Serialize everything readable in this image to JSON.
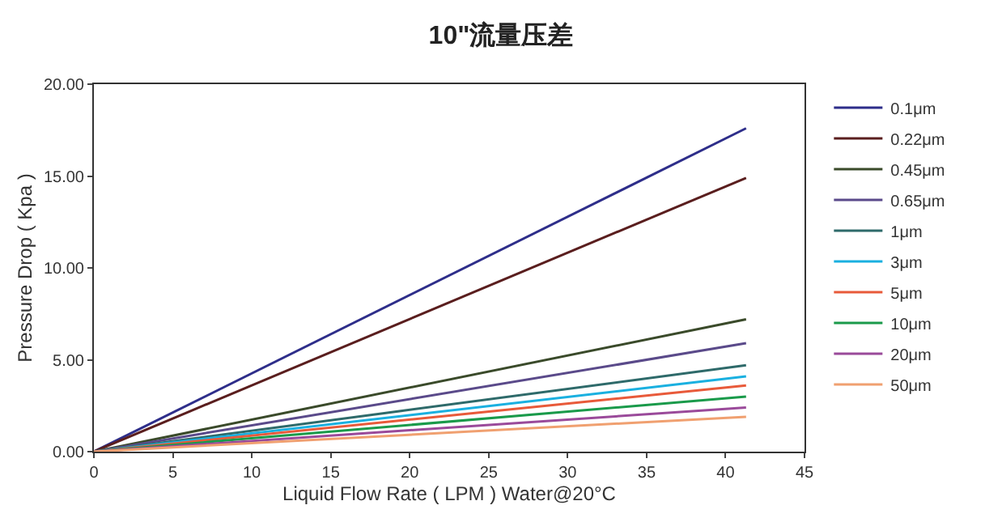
{
  "chart_data": {
    "type": "line",
    "title": "10\"流量压差",
    "xlabel": "Liquid Flow Rate ( LPM ) Water@20°C",
    "ylabel": "Pressure Drop ( Kpa )",
    "x": [
      0,
      41.3
    ],
    "series": [
      {
        "name": "0.1μm",
        "color": "#2e2e8a",
        "values": [
          0,
          17.6
        ]
      },
      {
        "name": "0.22μm",
        "color": "#5a1e1e",
        "values": [
          0,
          14.9
        ]
      },
      {
        "name": "0.45μm",
        "color": "#3a4a2a",
        "values": [
          0,
          7.2
        ]
      },
      {
        "name": "0.65μm",
        "color": "#5a4a8a",
        "values": [
          0,
          5.9
        ]
      },
      {
        "name": "1μm",
        "color": "#2e6a6a",
        "values": [
          0,
          4.7
        ]
      },
      {
        "name": "3μm",
        "color": "#1ab0e0",
        "values": [
          0,
          4.1
        ]
      },
      {
        "name": "5μm",
        "color": "#e85a3a",
        "values": [
          0,
          3.6
        ]
      },
      {
        "name": "10μm",
        "color": "#1a9a4a",
        "values": [
          0,
          3.0
        ]
      },
      {
        "name": "20μm",
        "color": "#9a4a9a",
        "values": [
          0,
          2.4
        ]
      },
      {
        "name": "50μm",
        "color": "#f0a070",
        "values": [
          0,
          1.9
        ]
      }
    ],
    "xlim": [
      0,
      45
    ],
    "xticks": [
      0,
      5,
      10,
      15,
      20,
      25,
      30,
      35,
      40,
      45
    ],
    "ylim": [
      0,
      20
    ],
    "yticks": [
      {
        "value": 0,
        "label": "0.00"
      },
      {
        "value": 5,
        "label": "5.00"
      },
      {
        "value": 10,
        "label": "10.00"
      },
      {
        "value": 15,
        "label": "15.00"
      },
      {
        "value": 20,
        "label": "20.00"
      }
    ],
    "grid": false,
    "legend": "right",
    "marker": "none",
    "line_style": "solid"
  }
}
